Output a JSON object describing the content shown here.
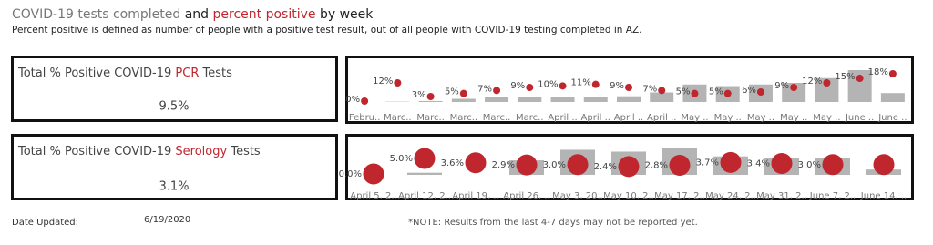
{
  "header": {
    "title": [
      "COVID-19 ",
      "tests completed",
      " and ",
      "percent positive",
      " by week"
    ],
    "subtitle": "Percent positive is defined as number of people with a positive test result, out of all people with COVID-19 testing completed in AZ."
  },
  "kpis": [
    {
      "label": [
        "Total % Positive COVID-19 ",
        "PCR",
        " Tests"
      ],
      "value": "9.5%"
    },
    {
      "label": [
        "Total % Positive COVID-19 ",
        "Serology",
        " Tests"
      ],
      "value": "3.1%"
    }
  ],
  "chart_data": [
    {
      "type": "combo",
      "categories": [
        "Febru..",
        "Marc..",
        "Marc..",
        "Marc..",
        "Marc..",
        "Marc..",
        "April ..",
        "April ..",
        "April ..",
        "April ..",
        "May ..",
        "May ..",
        "May ..",
        "May ..",
        "May ..",
        "June ..",
        "June .."
      ],
      "bars": {
        "color": "#b4b4b4",
        "values": [
          0,
          1,
          3,
          10,
          16,
          17,
          16,
          16,
          18,
          30,
          55,
          50,
          55,
          60,
          75,
          100,
          28
        ]
      },
      "points": {
        "color": "#c0262d",
        "values": [
          0,
          12,
          3,
          5,
          7,
          9,
          10,
          11,
          9,
          7,
          5,
          5,
          6,
          9,
          12,
          15,
          18
        ],
        "value_labels": [
          "0%",
          "12%",
          "3%",
          "5%",
          "7%",
          "9%",
          "10%",
          "11%",
          "9%",
          "7%",
          "5%",
          "5%",
          "6%",
          "9%",
          "12%",
          "15%",
          "18%"
        ]
      }
    },
    {
      "type": "combo",
      "categories": [
        "April 5, 2..",
        "April 12, 2..",
        "April 19, ..",
        "April 26, ..",
        "May 3, 20..",
        "May 10, 2..",
        "May 17, 2..",
        "May 24, 2..",
        "May 31, 2..",
        "June 7, 2..",
        "June 14, .."
      ],
      "bars": {
        "color": "#b4b4b4",
        "values": [
          0,
          8,
          0,
          55,
          95,
          88,
          100,
          70,
          65,
          65,
          20
        ]
      },
      "points": {
        "color": "#c0262d",
        "values": [
          0.0,
          5.0,
          3.6,
          2.9,
          3.0,
          2.4,
          2.8,
          3.7,
          3.4,
          3.0,
          3.0
        ],
        "value_labels": [
          "0.0%",
          "5.0%",
          "3.6%",
          "2.9%",
          "3.0%",
          "2.4%",
          "2.8%",
          "3.7%",
          "3.4%",
          "3.0%",
          null
        ]
      }
    }
  ],
  "footer": {
    "date_label": "Date Updated:",
    "date": "6/19/2020",
    "note": "*NOTE: Results from the last 4-7 days may not be reported yet."
  }
}
